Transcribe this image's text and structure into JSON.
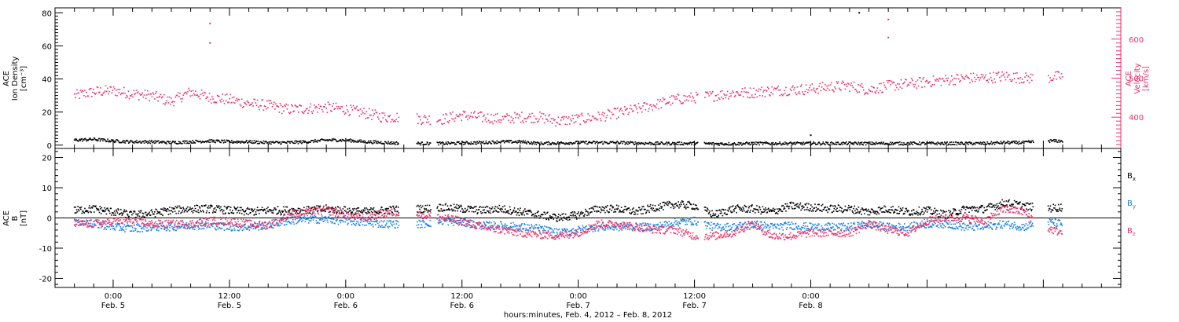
{
  "chart_data": [
    {
      "type": "scatter",
      "instrument": "ACE",
      "ylabel_left": [
        "ACE",
        "Ion Density",
        "[cm⁻³]"
      ],
      "ylabel_right": [
        "ACE",
        "Velocity",
        "[km/s]"
      ],
      "ylim_left": [
        -2,
        83
      ],
      "ylim_right": [
        320,
        680
      ],
      "yticks_left": [
        "0",
        "20",
        "40",
        "60",
        "80"
      ],
      "yticks_right": [
        "400",
        "500",
        "600"
      ],
      "colors": {
        "density": "#000000",
        "velocity": "#e8336a"
      },
      "series": [
        {
          "key": "density",
          "axis": "left",
          "points": [
            [
              -4,
              3
            ],
            [
              -2,
              3.5
            ],
            [
              0,
              2.5
            ],
            [
              2,
              2
            ],
            [
              4,
              2
            ],
            [
              6,
              1.5
            ],
            [
              8,
              2
            ],
            [
              10,
              2.5
            ],
            [
              12,
              2
            ],
            [
              14,
              2
            ],
            [
              16,
              1.5
            ],
            [
              18,
              1.5
            ],
            [
              20,
              2
            ],
            [
              22,
              3
            ],
            [
              24,
              3
            ],
            [
              26,
              2
            ],
            [
              28,
              1.5
            ],
            [
              30,
              1
            ],
            [
              34,
              1
            ],
            [
              36,
              1.2
            ],
            [
              38,
              1.5
            ],
            [
              40,
              2
            ],
            [
              42,
              2
            ],
            [
              44,
              1
            ],
            [
              46,
              1.2
            ],
            [
              48,
              1.5
            ],
            [
              50,
              1.5
            ],
            [
              52,
              1.5
            ],
            [
              54,
              1.2
            ],
            [
              56,
              1
            ],
            [
              58,
              1
            ],
            [
              60,
              1
            ],
            [
              62,
              0.8
            ],
            [
              64,
              0.8
            ],
            [
              66,
              1
            ],
            [
              68,
              1
            ],
            [
              70,
              1
            ],
            [
              72,
              1
            ],
            [
              74,
              1
            ],
            [
              76,
              1
            ],
            [
              78,
              1
            ],
            [
              80,
              1
            ],
            [
              82,
              1
            ],
            [
              84,
              1
            ],
            [
              86,
              1
            ],
            [
              88,
              1
            ],
            [
              90,
              1
            ],
            [
              92,
              1.5
            ],
            [
              94,
              1.5
            ],
            [
              96,
              2.5
            ],
            [
              98,
              2.5
            ]
          ]
        },
        {
          "key": "velocity",
          "axis": "right",
          "points": [
            [
              -4,
              455
            ],
            [
              -2,
              465
            ],
            [
              0,
              468
            ],
            [
              2,
              460
            ],
            [
              4,
              455
            ],
            [
              6,
              440
            ],
            [
              8,
              465
            ],
            [
              10,
              450
            ],
            [
              12,
              445
            ],
            [
              14,
              435
            ],
            [
              16,
              430
            ],
            [
              18,
              420
            ],
            [
              20,
              422
            ],
            [
              22,
              425
            ],
            [
              24,
              420
            ],
            [
              26,
              410
            ],
            [
              28,
              400
            ],
            [
              30,
              400
            ],
            [
              32,
              395
            ],
            [
              34,
              395
            ],
            [
              36,
              405
            ],
            [
              38,
              400
            ],
            [
              40,
              395
            ],
            [
              42,
              400
            ],
            [
              44,
              400
            ],
            [
              46,
              390
            ],
            [
              48,
              395
            ],
            [
              50,
              400
            ],
            [
              52,
              410
            ],
            [
              54,
              420
            ],
            [
              56,
              432
            ],
            [
              58,
              445
            ],
            [
              60,
              450
            ],
            [
              62,
              455
            ],
            [
              64,
              462
            ],
            [
              66,
              463
            ],
            [
              68,
              468
            ],
            [
              70,
              470
            ],
            [
              72,
              472
            ],
            [
              74,
              478
            ],
            [
              76,
              480
            ],
            [
              78,
              470
            ],
            [
              80,
              480
            ],
            [
              82,
              485
            ],
            [
              84,
              490
            ],
            [
              86,
              495
            ],
            [
              88,
              500
            ],
            [
              90,
              500
            ],
            [
              92,
              505
            ],
            [
              94,
              500
            ],
            [
              96,
              500
            ],
            [
              98,
              505
            ]
          ]
        }
      ],
      "spikes": {
        "density": [
          [
            77,
            80
          ],
          [
            72,
            6
          ]
        ],
        "velocity": [
          [
            10,
            640
          ],
          [
            10,
            590
          ],
          [
            80,
            604
          ],
          [
            80,
            650
          ]
        ]
      }
    },
    {
      "type": "scatter",
      "instrument": "ACE",
      "ylabel": [
        "ACE",
        "B",
        "[nT]"
      ],
      "ylim": [
        -23,
        23
      ],
      "yticks": [
        "-20",
        "-10",
        "0",
        "10",
        "20"
      ],
      "zero_line": true,
      "legend": [
        {
          "label": "B",
          "sub": "x",
          "color": "#000000"
        },
        {
          "label": "B",
          "sub": "y",
          "color": "#1a7fe0"
        },
        {
          "label": "B",
          "sub": "z",
          "color": "#e8336a"
        }
      ],
      "colors": {
        "bx": "#000000",
        "by": "#1a7fe0",
        "bz": "#e8336a"
      },
      "series": [
        {
          "key": "bx",
          "points": [
            [
              -4,
              2.5
            ],
            [
              -2,
              3
            ],
            [
              0,
              2
            ],
            [
              2,
              1
            ],
            [
              4,
              1.5
            ],
            [
              6,
              2.5
            ],
            [
              8,
              3
            ],
            [
              10,
              3
            ],
            [
              12,
              2.5
            ],
            [
              14,
              2
            ],
            [
              16,
              2.5
            ],
            [
              18,
              2.5
            ],
            [
              20,
              2.5
            ],
            [
              22,
              3
            ],
            [
              24,
              2.5
            ],
            [
              26,
              2
            ],
            [
              28,
              2.5
            ],
            [
              30,
              3
            ],
            [
              32,
              3
            ],
            [
              34,
              3.5
            ],
            [
              36,
              3
            ],
            [
              38,
              2.5
            ],
            [
              40,
              3
            ],
            [
              42,
              2
            ],
            [
              44,
              1
            ],
            [
              46,
              0
            ],
            [
              48,
              1
            ],
            [
              50,
              3
            ],
            [
              52,
              3
            ],
            [
              54,
              2
            ],
            [
              56,
              3.5
            ],
            [
              58,
              4.5
            ],
            [
              60,
              4
            ],
            [
              62,
              1
            ],
            [
              64,
              3
            ],
            [
              66,
              3
            ],
            [
              68,
              2
            ],
            [
              70,
              4
            ],
            [
              72,
              3.5
            ],
            [
              74,
              3
            ],
            [
              76,
              3
            ],
            [
              78,
              2
            ],
            [
              80,
              3
            ],
            [
              82,
              2
            ],
            [
              84,
              2.5
            ],
            [
              86,
              1
            ],
            [
              88,
              3
            ],
            [
              90,
              3
            ],
            [
              92,
              5
            ],
            [
              94,
              4
            ],
            [
              96,
              3
            ],
            [
              98,
              3.5
            ]
          ]
        },
        {
          "key": "by",
          "points": [
            [
              -4,
              -1
            ],
            [
              -2,
              -2
            ],
            [
              0,
              -3
            ],
            [
              2,
              -3.5
            ],
            [
              4,
              -3
            ],
            [
              6,
              -3
            ],
            [
              8,
              -2.5
            ],
            [
              10,
              -2.5
            ],
            [
              12,
              -3
            ],
            [
              14,
              -3
            ],
            [
              16,
              -2.5
            ],
            [
              18,
              -1
            ],
            [
              20,
              -0.5
            ],
            [
              22,
              -0.5
            ],
            [
              24,
              -1
            ],
            [
              26,
              -1.5
            ],
            [
              28,
              -2
            ],
            [
              30,
              -2
            ],
            [
              32,
              -2
            ],
            [
              34,
              -1
            ],
            [
              36,
              -1.5
            ],
            [
              38,
              -2.5
            ],
            [
              40,
              -2.5
            ],
            [
              42,
              -3
            ],
            [
              44,
              -3.5
            ],
            [
              46,
              -5
            ],
            [
              48,
              -4
            ],
            [
              50,
              -3
            ],
            [
              52,
              -3
            ],
            [
              54,
              -3
            ],
            [
              56,
              -3
            ],
            [
              58,
              -1.5
            ],
            [
              60,
              -1
            ],
            [
              62,
              -3
            ],
            [
              64,
              -3
            ],
            [
              66,
              -2
            ],
            [
              68,
              -3
            ],
            [
              70,
              -2.5
            ],
            [
              72,
              -3
            ],
            [
              74,
              -3
            ],
            [
              76,
              -3
            ],
            [
              78,
              -2
            ],
            [
              80,
              -3
            ],
            [
              82,
              -3
            ],
            [
              84,
              -2
            ],
            [
              86,
              -2
            ],
            [
              88,
              -3
            ],
            [
              90,
              -3
            ],
            [
              92,
              -2
            ],
            [
              94,
              -3
            ],
            [
              96,
              -1
            ],
            [
              98,
              -2
            ]
          ]
        },
        {
          "key": "bz",
          "points": [
            [
              -4,
              -2
            ],
            [
              -2,
              -2
            ],
            [
              0,
              -1
            ],
            [
              2,
              -1
            ],
            [
              4,
              -2
            ],
            [
              6,
              -2
            ],
            [
              8,
              -2
            ],
            [
              10,
              -1
            ],
            [
              12,
              -1
            ],
            [
              14,
              -2
            ],
            [
              16,
              -2.5
            ],
            [
              18,
              1
            ],
            [
              20,
              2
            ],
            [
              22,
              2.5
            ],
            [
              24,
              1
            ],
            [
              26,
              0
            ],
            [
              28,
              1.5
            ],
            [
              30,
              2
            ],
            [
              32,
              1
            ],
            [
              34,
              0
            ],
            [
              36,
              -1
            ],
            [
              38,
              -3
            ],
            [
              40,
              -4
            ],
            [
              42,
              -5
            ],
            [
              44,
              -5.5
            ],
            [
              46,
              -6
            ],
            [
              48,
              -5
            ],
            [
              50,
              -2
            ],
            [
              52,
              -2
            ],
            [
              54,
              -3
            ],
            [
              56,
              -4
            ],
            [
              58,
              -4
            ],
            [
              60,
              -6
            ],
            [
              62,
              -6
            ],
            [
              64,
              -5
            ],
            [
              66,
              -2
            ],
            [
              68,
              -6
            ],
            [
              70,
              -6
            ],
            [
              72,
              -5
            ],
            [
              74,
              -5
            ],
            [
              76,
              -5
            ],
            [
              78,
              -2
            ],
            [
              80,
              -4
            ],
            [
              82,
              -5
            ],
            [
              84,
              -1
            ],
            [
              86,
              0
            ],
            [
              88,
              0
            ],
            [
              90,
              -1
            ],
            [
              92,
              3
            ],
            [
              94,
              2
            ],
            [
              96,
              -3
            ],
            [
              98,
              -5
            ]
          ]
        }
      ]
    }
  ],
  "x_axis": {
    "range_hours": [
      -6,
      104
    ],
    "gaps_hours": [
      [
        29.5,
        31.3
      ],
      [
        32.8,
        33.4
      ],
      [
        60.4,
        61.0
      ],
      [
        95.0,
        96.5
      ]
    ],
    "ticks": [
      {
        "hour": 0,
        "time": "0:00",
        "date": "Feb. 5"
      },
      {
        "hour": 12,
        "time": "12:00",
        "date": "Feb. 5"
      },
      {
        "hour": 24,
        "time": "0:00",
        "date": "Feb. 6"
      },
      {
        "hour": 36,
        "time": "12:00",
        "date": "Feb. 6"
      },
      {
        "hour": 48,
        "time": "0:00",
        "date": "Feb. 7"
      },
      {
        "hour": 60,
        "time": "12:00",
        "date": "Feb. 7"
      },
      {
        "hour": 72,
        "time": "0:00",
        "date": "Feb. 8"
      }
    ],
    "caption": "hours:minutes, Feb.  4, 2012 – Feb.  8, 2012"
  }
}
